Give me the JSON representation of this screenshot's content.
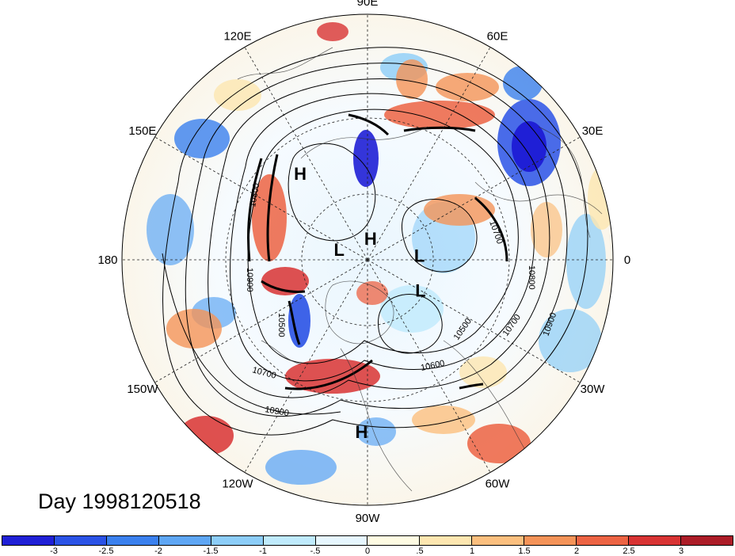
{
  "map": {
    "lon_labels": [
      {
        "text": "90E",
        "lon": 90
      },
      {
        "text": "60E",
        "lon": 60
      },
      {
        "text": "30E",
        "lon": 30
      },
      {
        "text": "0",
        "lon": 0
      },
      {
        "text": "30W",
        "lon": -30
      },
      {
        "text": "60W",
        "lon": -60
      },
      {
        "text": "90W",
        "lon": -90
      },
      {
        "text": "120W",
        "lon": -120
      },
      {
        "text": "150W",
        "lon": -150
      },
      {
        "text": "180",
        "lon": 180
      },
      {
        "text": "150E",
        "lon": 150
      },
      {
        "text": "120E",
        "lon": 120
      }
    ],
    "pressure_centers": [
      {
        "type": "H",
        "lon": 128,
        "lat": 42
      },
      {
        "type": "H",
        "lon": 82,
        "lat": 80
      },
      {
        "type": "H",
        "lon": -92,
        "lat": 20
      },
      {
        "type": "L",
        "lon": 160,
        "lat": 76
      },
      {
        "type": "L",
        "lon": 5,
        "lat": 66
      },
      {
        "type": "L",
        "lon": -30,
        "lat": 62
      }
    ],
    "contour_labels": [
      "10800",
      "10700",
      "10800",
      "10500",
      "10700",
      "10900",
      "10600",
      "10500",
      "10700",
      "10900",
      "10900"
    ]
  },
  "day_label": "Day 1998120518",
  "colorbar": {
    "colors": [
      "#1f1fd6",
      "#2a52e6",
      "#3a80ee",
      "#5ea6f4",
      "#8ccdf8",
      "#bfeafc",
      "#e6f6fe",
      "#fefbe2",
      "#fde6b0",
      "#fbbf7e",
      "#f49358",
      "#ec6343",
      "#d83333",
      "#ac1c27"
    ],
    "ticks": [
      "-3",
      "-2.5",
      "-2",
      "-1.5",
      "-1",
      "-.5",
      "0",
      ".5",
      "1",
      "1.5",
      "2",
      "2.5",
      "3"
    ]
  }
}
